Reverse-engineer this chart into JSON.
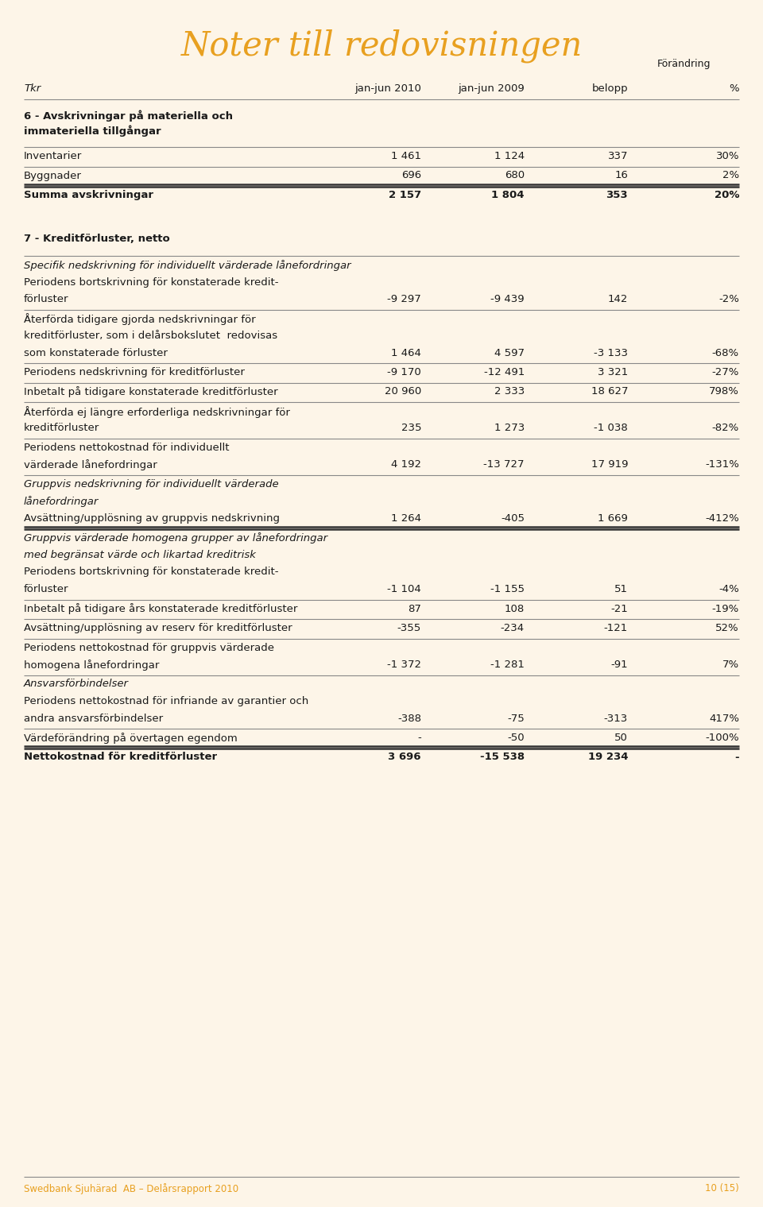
{
  "title": "Noter till redovisningen",
  "bg_color": "#fdf5e8",
  "title_color": "#e8a020",
  "text_color": "#1a1a1a",
  "footer_color": "#e8a020",
  "footer_left": "Swedbank Sjuhärad  AB – Delårsrapport 2010",
  "footer_right": "10 (15)",
  "forandring_label": "Förändring",
  "col_headers": [
    "Tkr",
    "jan-jun 2010",
    "jan-jun 2009",
    "belopp",
    "%"
  ],
  "rows": [
    {
      "type": "section_header",
      "col0": "6 - Avskrivningar på materiella och",
      "line2": "immateriella tillgångar"
    },
    {
      "type": "thin_line"
    },
    {
      "type": "data",
      "col0": "Inventarier",
      "col1": "1 461",
      "col2": "1 124",
      "col3": "337",
      "col4": "30%"
    },
    {
      "type": "thin_line"
    },
    {
      "type": "data",
      "col0": "Byggnader",
      "col1": "696",
      "col2": "680",
      "col3": "16",
      "col4": "2%"
    },
    {
      "type": "thick_line"
    },
    {
      "type": "data",
      "col0": "Summa avskrivningar",
      "col1": "2 157",
      "col2": "1 804",
      "col3": "353",
      "col4": "20%",
      "bold": true
    },
    {
      "type": "spacer"
    },
    {
      "type": "section_header",
      "col0": "7 - Kreditförluster, netto"
    },
    {
      "type": "thin_line"
    },
    {
      "type": "data",
      "col0": "Specifik nedskrivning för individuellt värderade lånefordringar",
      "italic": true
    },
    {
      "type": "data",
      "col0": "Periodens bortskrivning för konstaterade kredit-"
    },
    {
      "type": "data",
      "col0": "förluster",
      "col1": "-9 297",
      "col2": "-9 439",
      "col3": "142",
      "col4": "-2%"
    },
    {
      "type": "thin_line"
    },
    {
      "type": "data",
      "col0": "Återförda tidigare gjorda nedskrivningar för"
    },
    {
      "type": "data",
      "col0": "kreditförluster, som i delårsbokslutet  redovisas"
    },
    {
      "type": "data",
      "col0": "som konstaterade förluster",
      "col1": "1 464",
      "col2": "4 597",
      "col3": "-3 133",
      "col4": "-68%"
    },
    {
      "type": "thin_line"
    },
    {
      "type": "data",
      "col0": "Periodens nedskrivning för kreditförluster",
      "col1": "-9 170",
      "col2": "-12 491",
      "col3": "3 321",
      "col4": "-27%"
    },
    {
      "type": "thin_line"
    },
    {
      "type": "data",
      "col0": "Inbetalt på tidigare konstaterade kreditförluster",
      "col1": "20 960",
      "col2": "2 333",
      "col3": "18 627",
      "col4": "798%"
    },
    {
      "type": "thin_line"
    },
    {
      "type": "data",
      "col0": "Återförda ej längre erforderliga nedskrivningar för"
    },
    {
      "type": "data",
      "col0": "kreditförluster",
      "col1": "235",
      "col2": "1 273",
      "col3": "-1 038",
      "col4": "-82%"
    },
    {
      "type": "thin_line"
    },
    {
      "type": "data",
      "col0": "Periodens nettokostnad för individuellt"
    },
    {
      "type": "data",
      "col0": "värderade lånefordringar",
      "col1": "4 192",
      "col2": "-13 727",
      "col3": "17 919",
      "col4": "-131%"
    },
    {
      "type": "thin_line"
    },
    {
      "type": "data",
      "col0": "Gruppvis nedskrivning för individuellt värderade",
      "italic": true
    },
    {
      "type": "data",
      "col0": "lånefordringar",
      "italic": true
    },
    {
      "type": "data",
      "col0": "Avsättning/upplösning av gruppvis nedskrivning",
      "col1": "1 264",
      "col2": "-405",
      "col3": "1 669",
      "col4": "-412%"
    },
    {
      "type": "thick_line"
    },
    {
      "type": "data",
      "col0": "Gruppvis värderade homogena grupper av lånefordringar",
      "italic": true
    },
    {
      "type": "data",
      "col0": "med begränsat värde och likartad kreditrisk",
      "italic": true
    },
    {
      "type": "data",
      "col0": "Periodens bortskrivning för konstaterade kredit-"
    },
    {
      "type": "data",
      "col0": "förluster",
      "col1": "-1 104",
      "col2": "-1 155",
      "col3": "51",
      "col4": "-4%"
    },
    {
      "type": "thin_line"
    },
    {
      "type": "data",
      "col0": "Inbetalt på tidigare års konstaterade kreditförluster",
      "col1": "87",
      "col2": "108",
      "col3": "-21",
      "col4": "-19%"
    },
    {
      "type": "thin_line"
    },
    {
      "type": "data",
      "col0": "Avsättning/upplösning av reserv för kreditförluster",
      "col1": "-355",
      "col2": "-234",
      "col3": "-121",
      "col4": "52%"
    },
    {
      "type": "thin_line"
    },
    {
      "type": "data",
      "col0": "Periodens nettokostnad för gruppvis värderade"
    },
    {
      "type": "data",
      "col0": "homogena lånefordringar",
      "col1": "-1 372",
      "col2": "-1 281",
      "col3": "-91",
      "col4": "7%"
    },
    {
      "type": "thin_line"
    },
    {
      "type": "data",
      "col0": "Ansvarsförbindelser",
      "italic": true
    },
    {
      "type": "data",
      "col0": "Periodens nettokostnad för infriande av garantier och"
    },
    {
      "type": "data",
      "col0": "andra ansvarsförbindelser",
      "col1": "-388",
      "col2": "-75",
      "col3": "-313",
      "col4": "417%"
    },
    {
      "type": "thin_line"
    },
    {
      "type": "data",
      "col0": "Värdeförändring på övertagen egendom",
      "col1": "-",
      "col2": "-50",
      "col3": "50",
      "col4": "-100%"
    },
    {
      "type": "thick_line"
    },
    {
      "type": "data",
      "col0": "Nettokostnad för kreditförluster",
      "col1": "3 696",
      "col2": "-15 538",
      "col3": "19 234",
      "col4": "-",
      "bold": true
    }
  ]
}
